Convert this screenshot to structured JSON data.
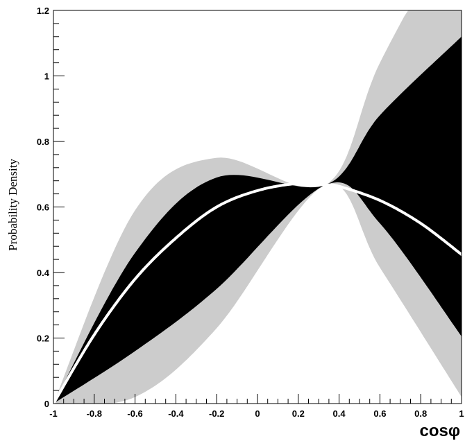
{
  "chart_data": {
    "type": "area",
    "xlabel": "cosφ",
    "ylabel": "Probability Density",
    "xlim": [
      -1,
      1
    ],
    "ylim": [
      0,
      1.2
    ],
    "x_ticks": [
      -1,
      -0.8,
      -0.6,
      -0.4,
      -0.2,
      0,
      0.2,
      0.4,
      0.6,
      0.8,
      1
    ],
    "x_tick_labels": [
      "-1",
      "-0.8",
      "-0.6",
      "-0.4",
      "-0.2",
      "0",
      "0.2",
      "0.4",
      "0.6",
      "0.8",
      "1"
    ],
    "y_ticks": [
      0,
      0.2,
      0.4,
      0.6,
      0.8,
      1.0,
      1.2
    ],
    "y_tick_labels": [
      "0",
      "0.2",
      "0.4",
      "0.6",
      "0.8",
      "1",
      "1.2"
    ],
    "grid": false,
    "colors": {
      "outer_band": "#cccccc",
      "inner_band": "#000000",
      "central_curve": "#ffffff",
      "background": "#ffffff"
    },
    "bands": [
      {
        "x": [
          -1,
          -0.6,
          -0.2,
          0.333,
          0.6,
          1.0
        ],
        "lower": [
          0,
          0.02,
          0.23,
          0.667,
          0.415,
          0.02
        ],
        "upper": [
          0,
          0.59,
          0.75,
          0.667,
          1.04,
          1.5
        ]
      },
      {
        "x": [
          -1,
          -0.6,
          -0.2,
          0.333,
          0.6,
          1.0
        ],
        "lower": [
          0,
          0.16,
          0.35,
          0.667,
          0.55,
          0.205
        ],
        "upper": [
          0,
          0.46,
          0.69,
          0.667,
          0.88,
          1.12
        ]
      }
    ],
    "curve": {
      "x": [
        -1,
        -0.8,
        -0.6,
        -0.4,
        -0.2,
        0,
        0.2,
        0.333,
        0.4,
        0.6,
        0.8,
        1.0
      ],
      "y": [
        0,
        0.21,
        0.38,
        0.505,
        0.6,
        0.65,
        0.672,
        0.667,
        0.663,
        0.62,
        0.55,
        0.455
      ]
    }
  }
}
